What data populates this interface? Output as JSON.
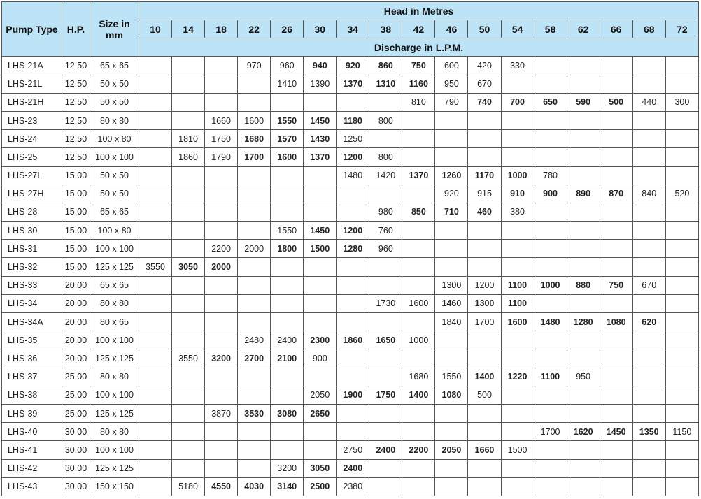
{
  "headers": {
    "pump_type": "Pump Type",
    "hp": "H.P.",
    "size": "Size in mm",
    "head": "Head in Metres",
    "discharge": "Discharge in L.P.M."
  },
  "colors": {
    "header_bg": "#bde3f6",
    "border": "#555555"
  },
  "heads": [
    "10",
    "14",
    "18",
    "22",
    "26",
    "30",
    "34",
    "38",
    "42",
    "46",
    "50",
    "54",
    "58",
    "62",
    "66",
    "68",
    "72"
  ],
  "rows": [
    {
      "type": "LHS-21A",
      "hp": "12.50",
      "size": "65 x 65",
      "q": {
        "22": "970",
        "26": "960",
        "30": "940",
        "34": "920",
        "38": "860",
        "42": "750",
        "46": "600",
        "50": "420",
        "54": "330"
      },
      "bold": [
        "30",
        "34",
        "38",
        "42"
      ]
    },
    {
      "type": "LHS-21L",
      "hp": "12.50",
      "size": "50 x 50",
      "q": {
        "26": "1410",
        "30": "1390",
        "34": "1370",
        "38": "1310",
        "42": "1160",
        "46": "950",
        "50": "670"
      },
      "bold": [
        "34",
        "38",
        "42"
      ]
    },
    {
      "type": "LHS-21H",
      "hp": "12.50",
      "size": "50 x 50",
      "q": {
        "42": "810",
        "46": "790",
        "50": "740",
        "54": "700",
        "58": "650",
        "62": "590",
        "66": "500",
        "68": "440",
        "72": "300"
      },
      "bold": [
        "50",
        "54",
        "58",
        "62",
        "66"
      ]
    },
    {
      "type": "LHS-23",
      "hp": "12.50",
      "size": "80 x 80",
      "q": {
        "18": "1660",
        "22": "1600",
        "26": "1550",
        "30": "1450",
        "34": "1180",
        "38": "800"
      },
      "bold": [
        "26",
        "30",
        "34"
      ]
    },
    {
      "type": "LHS-24",
      "hp": "12.50",
      "size": "100 x 80",
      "q": {
        "14": "1810",
        "18": "1750",
        "22": "1680",
        "26": "1570",
        "30": "1430",
        "34": "1250"
      },
      "bold": [
        "22",
        "26",
        "30"
      ]
    },
    {
      "type": "LHS-25",
      "hp": "12.50",
      "size": "100 x 100",
      "q": {
        "14": "1860",
        "18": "1790",
        "22": "1700",
        "26": "1600",
        "30": "1370",
        "34": "1200",
        "38": "800"
      },
      "bold": [
        "22",
        "26",
        "30",
        "34"
      ]
    },
    {
      "type": "LHS-27L",
      "hp": "15.00",
      "size": "50 x 50",
      "q": {
        "34": "1480",
        "38": "1420",
        "42": "1370",
        "46": "1260",
        "50": "1170",
        "54": "1000",
        "58": "780"
      },
      "bold": [
        "42",
        "46",
        "50",
        "54"
      ]
    },
    {
      "type": "LHS-27H",
      "hp": "15.00",
      "size": "50 x 50",
      "q": {
        "46": "920",
        "50": "915",
        "54": "910",
        "58": "900",
        "62": "890",
        "66": "870",
        "68": "840",
        "72": "520"
      },
      "bold": [
        "54",
        "58",
        "62",
        "66"
      ]
    },
    {
      "type": "LHS-28",
      "hp": "15.00",
      "size": "65 x 65",
      "q": {
        "38": "980",
        "42": "850",
        "46": "710",
        "50": "460",
        "54": "380"
      },
      "bold": [
        "42",
        "46",
        "50"
      ]
    },
    {
      "type": "LHS-30",
      "hp": "15.00",
      "size": "100 x 80",
      "q": {
        "26": "1550",
        "30": "1450",
        "34": "1200",
        "38": "760"
      },
      "bold": [
        "30",
        "34"
      ]
    },
    {
      "type": "LHS-31",
      "hp": "15.00",
      "size": "100 x 100",
      "q": {
        "18": "2200",
        "22": "2000",
        "26": "1800",
        "30": "1500",
        "34": "1280",
        "38": "960"
      },
      "bold": [
        "26",
        "30",
        "34"
      ]
    },
    {
      "type": "LHS-32",
      "hp": "15.00",
      "size": "125 x 125",
      "q": {
        "10": "3550",
        "14": "3050",
        "18": "2000"
      },
      "bold": [
        "14",
        "18"
      ]
    },
    {
      "type": "LHS-33",
      "hp": "20.00",
      "size": "65 x 65",
      "q": {
        "46": "1300",
        "50": "1200",
        "54": "1100",
        "58": "1000",
        "62": "880",
        "66": "750",
        "68": "670"
      },
      "bold": [
        "54",
        "58",
        "62",
        "66"
      ]
    },
    {
      "type": "LHS-34",
      "hp": "20.00",
      "size": "80 x 80",
      "q": {
        "38": "1730",
        "42": "1600",
        "46": "1460",
        "50": "1300",
        "54": "1100"
      },
      "bold": [
        "46",
        "50",
        "54"
      ]
    },
    {
      "type": "LHS-34A",
      "hp": "20.00",
      "size": "80 x 65",
      "q": {
        "46": "1840",
        "50": "1700",
        "54": "1600",
        "58": "1480",
        "62": "1280",
        "66": "1080",
        "68": "620"
      },
      "bold": [
        "54",
        "58",
        "62",
        "66",
        "68"
      ]
    },
    {
      "type": "LHS-35",
      "hp": "20.00",
      "size": "100 x 100",
      "q": {
        "22": "2480",
        "26": "2400",
        "30": "2300",
        "34": "1860",
        "38": "1650",
        "42": "1000"
      },
      "bold": [
        "30",
        "34",
        "38"
      ]
    },
    {
      "type": "LHS-36",
      "hp": "20.00",
      "size": "125 x 125",
      "q": {
        "14": "3550",
        "18": "3200",
        "22": "2700",
        "26": "2100",
        "30": "900"
      },
      "bold": [
        "18",
        "22",
        "26"
      ]
    },
    {
      "type": "LHS-37",
      "hp": "25.00",
      "size": "80 x 80",
      "q": {
        "42": "1680",
        "46": "1550",
        "50": "1400",
        "54": "1220",
        "58": "1100",
        "62": "950"
      },
      "bold": [
        "50",
        "54",
        "58"
      ]
    },
    {
      "type": "LHS-38",
      "hp": "25.00",
      "size": "100 x 100",
      "q": {
        "30": "2050",
        "34": "1900",
        "38": "1750",
        "42": "1400",
        "46": "1080",
        "50": "500"
      },
      "bold": [
        "34",
        "38",
        "42",
        "46"
      ]
    },
    {
      "type": "LHS-39",
      "hp": "25.00",
      "size": "125 x 125",
      "q": {
        "18": "3870",
        "22": "3530",
        "26": "3080",
        "30": "2650"
      },
      "bold": [
        "22",
        "26",
        "30"
      ]
    },
    {
      "type": "LHS-40",
      "hp": "30.00",
      "size": "80 x 80",
      "q": {
        "58": "1700",
        "62": "1620",
        "66": "1450",
        "68": "1350",
        "72": "1150"
      },
      "bold": [
        "62",
        "66",
        "68"
      ]
    },
    {
      "type": "LHS-41",
      "hp": "30.00",
      "size": "100 x 100",
      "q": {
        "34": "2750",
        "38": "2400",
        "42": "2200",
        "46": "2050",
        "50": "1660",
        "54": "1500"
      },
      "bold": [
        "38",
        "42",
        "46",
        "50"
      ]
    },
    {
      "type": "LHS-42",
      "hp": "30.00",
      "size": "125 x 125",
      "q": {
        "26": "3200",
        "30": "3050",
        "34": "2400"
      },
      "bold": [
        "30",
        "34"
      ]
    },
    {
      "type": "LHS-43",
      "hp": "30.00",
      "size": "150 x 150",
      "q": {
        "14": "5180",
        "18": "4550",
        "22": "4030",
        "26": "3140",
        "30": "2500",
        "34": "2380"
      },
      "bold": [
        "18",
        "22",
        "26",
        "30"
      ]
    }
  ]
}
